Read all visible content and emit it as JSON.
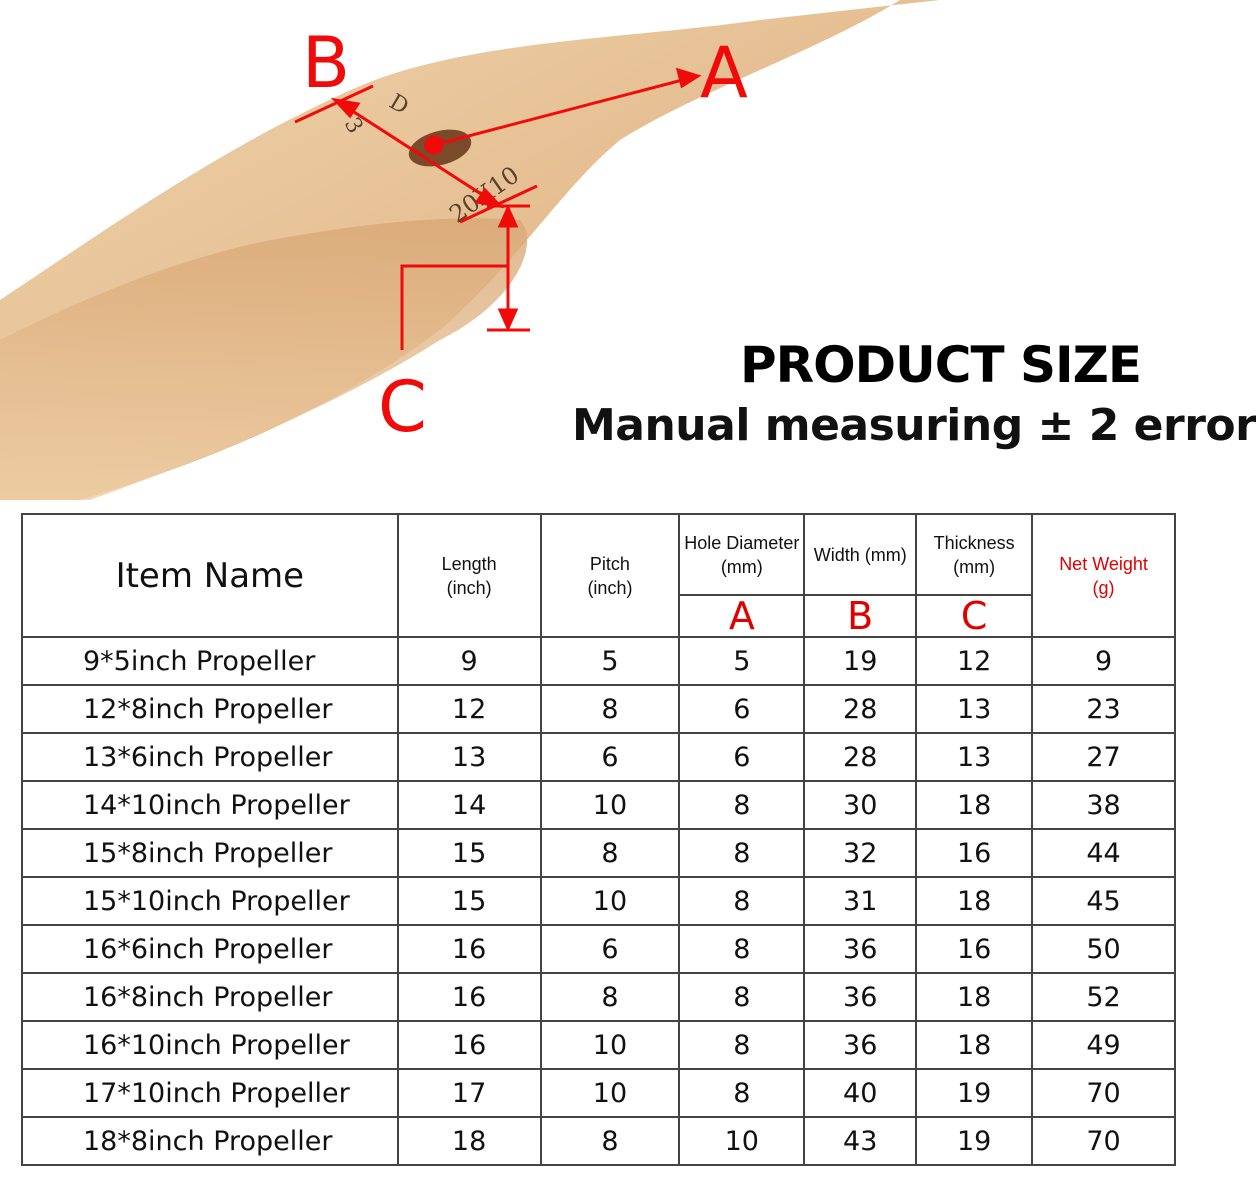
{
  "diagram": {
    "labels": {
      "a": "A",
      "b": "B",
      "c": "C"
    },
    "engraving": [
      "3",
      "D",
      "20X10"
    ]
  },
  "heading": {
    "title": "PRODUCT SIZE",
    "subtitle": "Manual measuring ± 2 error"
  },
  "colors": {
    "accent": "#f00a0a",
    "wood": "#e8c49a"
  },
  "table": {
    "headers": {
      "item_name": "Item Name",
      "length": "Length",
      "length_unit": "(inch)",
      "pitch": "Pitch",
      "pitch_unit": "(inch)",
      "hole": "Hole Diameter (mm)",
      "width": "Width (mm)",
      "thickness": "Thickness (mm)",
      "weight": "Net Weight",
      "weight_unit": "(g)",
      "letter_a": "A",
      "letter_b": "B",
      "letter_c": "C"
    },
    "rows": [
      [
        "9*5inch Propeller",
        "9",
        "5",
        "5",
        "19",
        "12",
        "9"
      ],
      [
        "12*8inch Propeller",
        "12",
        "8",
        "6",
        "28",
        "13",
        "23"
      ],
      [
        "13*6inch Propeller",
        "13",
        "6",
        "6",
        "28",
        "13",
        "27"
      ],
      [
        "14*10inch Propeller",
        "14",
        "10",
        "8",
        "30",
        "18",
        "38"
      ],
      [
        "15*8inch Propeller",
        "15",
        "8",
        "8",
        "32",
        "16",
        "44"
      ],
      [
        "15*10inch Propeller",
        "15",
        "10",
        "8",
        "31",
        "18",
        "45"
      ],
      [
        "16*6inch Propeller",
        "16",
        "6",
        "8",
        "36",
        "16",
        "50"
      ],
      [
        "16*8inch Propeller",
        "16",
        "8",
        "8",
        "36",
        "18",
        "52"
      ],
      [
        "16*10inch Propeller",
        "16",
        "10",
        "8",
        "36",
        "18",
        "49"
      ],
      [
        "17*10inch Propeller",
        "17",
        "10",
        "8",
        "40",
        "19",
        "70"
      ],
      [
        "18*8inch Propeller",
        "18",
        "8",
        "10",
        "43",
        "19",
        "70"
      ]
    ]
  }
}
